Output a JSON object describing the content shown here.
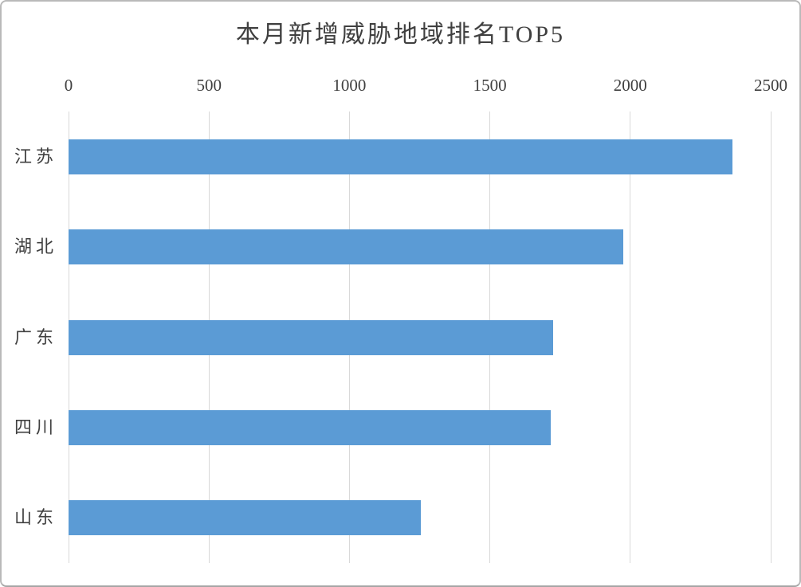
{
  "chart_data": {
    "type": "bar",
    "orientation": "horizontal",
    "title": "本月新增威胁地域排名TOP5",
    "categories": [
      "江苏",
      "湖北",
      "广东",
      "四川",
      "山东"
    ],
    "values": [
      2364,
      1975,
      1724,
      1718,
      1255
    ],
    "xlabel": "",
    "ylabel": "",
    "xlim": [
      0,
      2500
    ],
    "xticks": [
      0,
      500,
      1000,
      1500,
      2000,
      2500
    ],
    "value_axis_position": "top",
    "grid": true,
    "legend": "none",
    "bar_color": "#5B9BD5",
    "gridline_color": "#D9D9D9",
    "text_color": "#404040",
    "background_color": "#FFFFFF"
  }
}
